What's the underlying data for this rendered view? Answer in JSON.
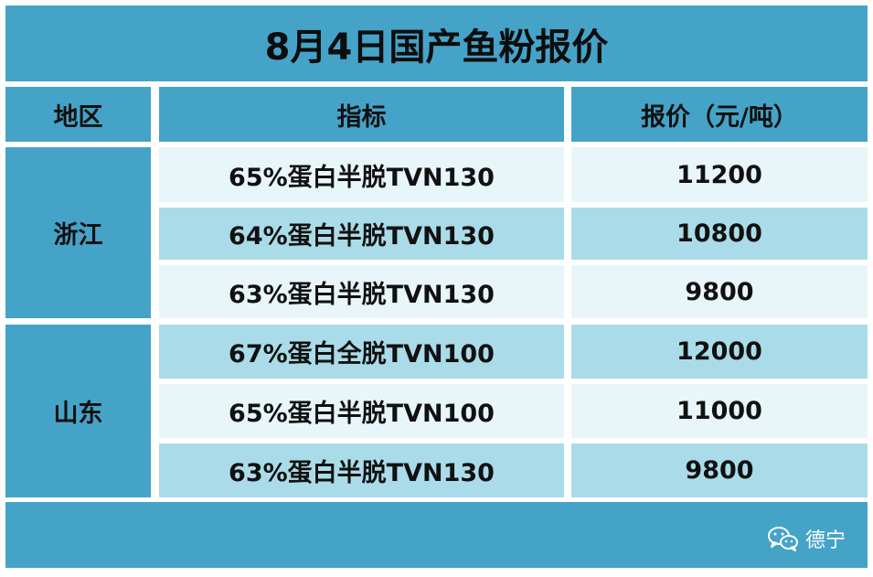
{
  "title": "8月4日国产鱼粉报价",
  "headers": {
    "region": "地区",
    "indicator": "指标",
    "price": "报价（元/吨）"
  },
  "regions": [
    {
      "name": "浙江",
      "rows": [
        {
          "indicator": "65%蛋白半脱TVN130",
          "price": "11200"
        },
        {
          "indicator": "64%蛋白半脱TVN130",
          "price": "10800"
        },
        {
          "indicator": "63%蛋白半脱TVN130",
          "price": "9800"
        }
      ]
    },
    {
      "name": "山东",
      "rows": [
        {
          "indicator": "67%蛋白全脱TVN100",
          "price": "12000"
        },
        {
          "indicator": "65%蛋白半脱TVN100",
          "price": "11000"
        },
        {
          "indicator": "63%蛋白半脱TVN130",
          "price": "9800"
        }
      ]
    }
  ],
  "footer": {
    "brand_label": "德宁",
    "brand_icon": "wechat-icon"
  },
  "colors": {
    "header_blue": "#45a3c8",
    "row_light": "#e8f6f9",
    "row_medium": "#a9dce8"
  }
}
